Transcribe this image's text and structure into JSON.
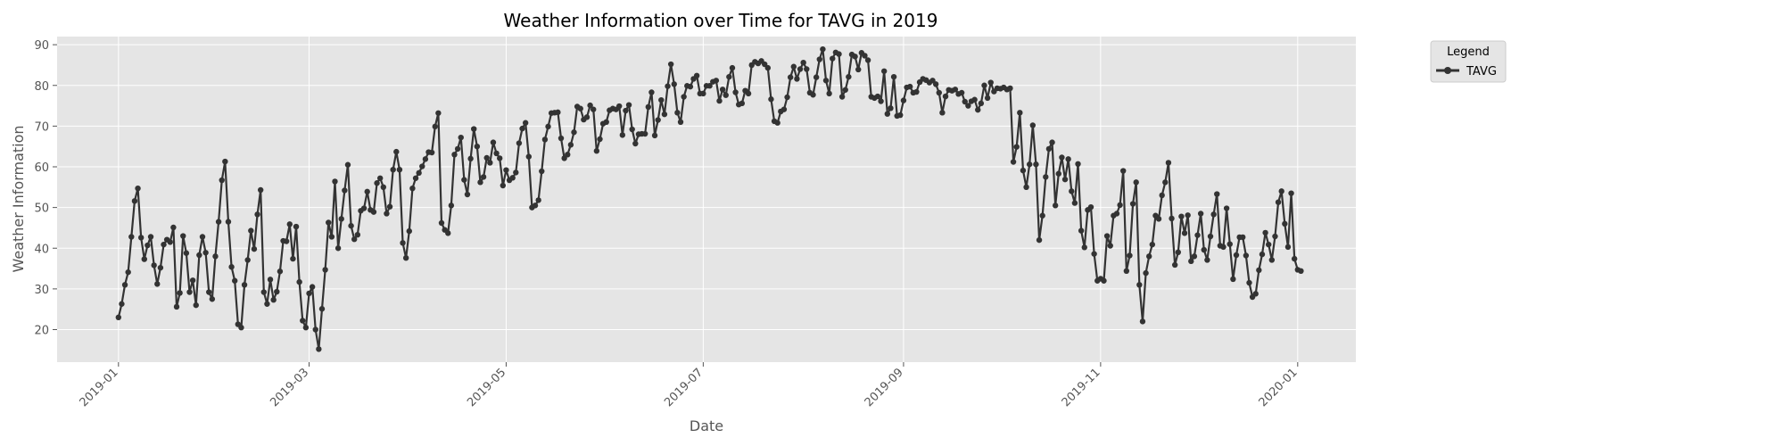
{
  "chart_data": {
    "type": "line",
    "title": "Weather Information over Time for TAVG in 2019",
    "xlabel": "Date",
    "ylabel": "Weather Information",
    "x_start": "2019-01-01",
    "x_range": [
      "2018-12-13",
      "2020-01-19"
    ],
    "ylim": [
      12,
      92
    ],
    "x_ticks": [
      "2019-01",
      "2019-03",
      "2019-05",
      "2019-07",
      "2019-09",
      "2019-11",
      "2020-01"
    ],
    "y_ticks": [
      20,
      30,
      40,
      50,
      60,
      70,
      80,
      90
    ],
    "grid": true,
    "legend": {
      "title": "Legend",
      "placement": "outside-top-right"
    },
    "colors": {
      "plot_bg": "#e5e5e5",
      "grid": "#ffffff",
      "line": "#333333"
    },
    "series": [
      {
        "name": "TAVG",
        "values": [
          23.0,
          26.3,
          31.0,
          34.1,
          42.8,
          51.6,
          54.7,
          42.6,
          37.3,
          40.7,
          42.8,
          35.8,
          31.2,
          35.2,
          40.9,
          42.1,
          41.5,
          45.1,
          25.6,
          29.0,
          43.0,
          38.8,
          29.2,
          32.1,
          26.0,
          38.3,
          42.8,
          38.9,
          29.2,
          27.5,
          38.0,
          46.5,
          56.7,
          61.3,
          46.5,
          35.4,
          32.0,
          21.3,
          20.5,
          31.0,
          37.1,
          44.3,
          39.8,
          48.3,
          54.3,
          29.2,
          26.3,
          32.3,
          27.3,
          29.3,
          34.3,
          41.8,
          41.7,
          45.9,
          37.4,
          45.3,
          31.7,
          22.2,
          20.5,
          28.9,
          30.5,
          20.0,
          15.2,
          25.1,
          34.7,
          46.3,
          42.8,
          56.4,
          40.0,
          47.2,
          54.2,
          60.5,
          45.5,
          42.2,
          43.3,
          49.2,
          49.8,
          53.9,
          49.4,
          48.9,
          56.0,
          57.2,
          55.0,
          48.5,
          50.2,
          59.3,
          63.7,
          59.3,
          41.3,
          37.6,
          44.2,
          54.7,
          57.2,
          58.5,
          60.1,
          61.9,
          63.6,
          63.5,
          69.9,
          73.2,
          46.2,
          44.5,
          43.7,
          50.5,
          63.0,
          64.4,
          67.2,
          56.8,
          53.2,
          62.0,
          69.3,
          65.0,
          56.2,
          57.5,
          62.2,
          61.0,
          66.0,
          63.3,
          62.1,
          55.4,
          59.2,
          56.7,
          57.3,
          58.6,
          65.8,
          69.4,
          70.8,
          62.5,
          50.0,
          50.5,
          51.8,
          58.9,
          66.7,
          69.9,
          73.2,
          73.3,
          73.4,
          67.0,
          62.1,
          63.0,
          65.4,
          68.5,
          74.8,
          74.3,
          71.6,
          72.2,
          75.1,
          74.1,
          63.9,
          66.8,
          70.6,
          71.0,
          73.9,
          74.3,
          74.1,
          74.9,
          67.8,
          73.8,
          75.2,
          69.2,
          65.7,
          68.0,
          68.1,
          68.1,
          74.7,
          78.3,
          67.7,
          71.5,
          76.4,
          72.9,
          79.8,
          85.2,
          80.3,
          73.3,
          71.0,
          77.2,
          79.9,
          79.7,
          81.6,
          82.4,
          78.0,
          78.0,
          79.9,
          79.9,
          80.9,
          81.2,
          76.2,
          79.0,
          77.6,
          82.1,
          84.3,
          78.3,
          75.3,
          75.6,
          78.7,
          78.0,
          85.0,
          85.8,
          85.4,
          86.0,
          85.2,
          84.3,
          76.6,
          71.2,
          70.8,
          73.6,
          74.1,
          77.1,
          82.0,
          84.6,
          81.6,
          84.0,
          85.6,
          84.0,
          78.2,
          77.7,
          82.0,
          86.4,
          88.9,
          81.2,
          78.0,
          86.6,
          88.1,
          87.7,
          77.2,
          78.9,
          82.1,
          87.6,
          87.1,
          83.9,
          88.0,
          87.3,
          86.2,
          77.2,
          76.9,
          77.3,
          76.1,
          83.5,
          73.0,
          74.4,
          82.1,
          72.5,
          72.7,
          76.3,
          79.5,
          79.7,
          78.2,
          78.4,
          80.8,
          81.6,
          81.3,
          80.7,
          81.2,
          80.3,
          78.2,
          73.3,
          77.3,
          78.9,
          78.7,
          79.0,
          77.9,
          78.2,
          76.0,
          75.0,
          76.1,
          76.5,
          74.0,
          75.6,
          80.0,
          76.9,
          80.7,
          78.5,
          79.3,
          79.2,
          79.5,
          79.0,
          79.3,
          61.2,
          64.9,
          73.3,
          59.1,
          55.0,
          60.6,
          70.2,
          60.6,
          42.0,
          48.0,
          57.5,
          64.4,
          66.0,
          50.5,
          58.3,
          62.3,
          56.9,
          61.9,
          54.0,
          51.1,
          60.7,
          44.3,
          40.2,
          49.4,
          50.1,
          38.6,
          32.0,
          32.5,
          32.0,
          43.0,
          40.6,
          48.0,
          48.5,
          50.6,
          59.0,
          34.4,
          38.2,
          50.9,
          56.2,
          31.0,
          22.0,
          33.9,
          38.0,
          40.9,
          48.0,
          47.2,
          53.0,
          56.2,
          61.0,
          47.3,
          35.9,
          39.0,
          47.8,
          43.7,
          48.1,
          36.8,
          38.0,
          43.2,
          48.5,
          39.6,
          37.1,
          42.9,
          48.3,
          53.3,
          40.6,
          40.3,
          49.8,
          41.0,
          32.4,
          38.3,
          42.7,
          42.7,
          38.2,
          31.5,
          28.0,
          28.8,
          34.6,
          38.5,
          43.8,
          40.9,
          37.1,
          42.9,
          51.3,
          54.0,
          46.0,
          40.3,
          53.5,
          37.4,
          34.7,
          34.4
        ]
      }
    ]
  }
}
